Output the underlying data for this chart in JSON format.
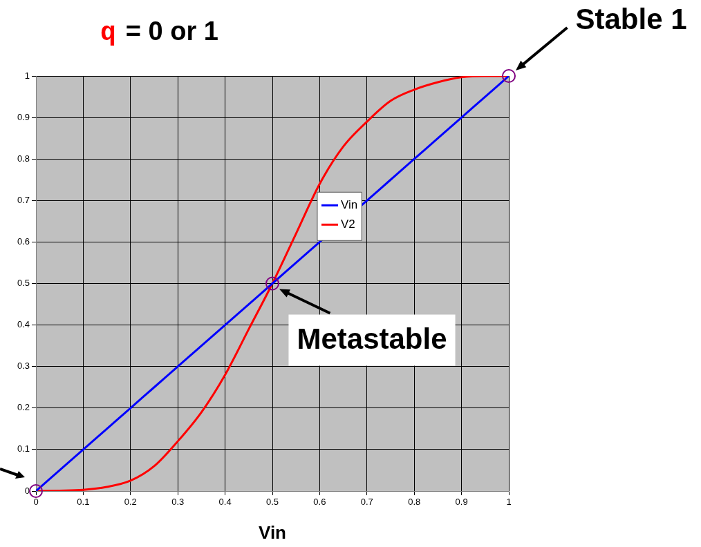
{
  "chart_data": {
    "type": "line",
    "title": "q = 0 or 1",
    "xlabel": "Vin",
    "x": [
      0,
      0.05,
      0.1,
      0.15,
      0.2,
      0.25,
      0.3,
      0.35,
      0.4,
      0.45,
      0.5,
      0.55,
      0.6,
      0.65,
      0.7,
      0.75,
      0.8,
      0.85,
      0.9,
      0.95,
      1
    ],
    "series": [
      {
        "name": "Vin",
        "color": "#0000ff",
        "values": [
          0,
          0.05,
          0.1,
          0.15,
          0.2,
          0.25,
          0.3,
          0.35,
          0.4,
          0.45,
          0.5,
          0.55,
          0.6,
          null,
          0.7,
          0.75,
          0.8,
          0.85,
          0.9,
          0.95,
          1
        ]
      },
      {
        "name": "V2",
        "color": "#ff0000",
        "values": [
          0,
          0.001,
          0.003,
          0.01,
          0.025,
          0.06,
          0.12,
          0.19,
          0.28,
          0.39,
          0.5,
          0.62,
          0.74,
          0.83,
          0.89,
          0.94,
          0.967,
          0.985,
          0.997,
          1,
          1
        ]
      },
      {
        "type": "scatter",
        "color": "#800080",
        "x": [
          0,
          0.5,
          1
        ],
        "values": [
          0,
          0.5,
          1
        ]
      }
    ],
    "xlim": [
      0,
      1
    ],
    "ylim": [
      0,
      1
    ],
    "xticks": [
      0,
      0.1,
      0.2,
      0.3,
      0.4,
      0.5,
      0.6,
      0.7,
      0.8,
      0.9,
      1
    ],
    "yticks": [
      0,
      0.1,
      0.2,
      0.3,
      0.4,
      0.5,
      0.6,
      0.7,
      0.8,
      0.9,
      1
    ],
    "grid": true,
    "legend": "center",
    "annotations": [
      {
        "text": "Stable 1",
        "x": 1,
        "y": 1
      },
      {
        "text": "Metastable",
        "x": 0.5,
        "y": 0.5
      }
    ]
  }
}
